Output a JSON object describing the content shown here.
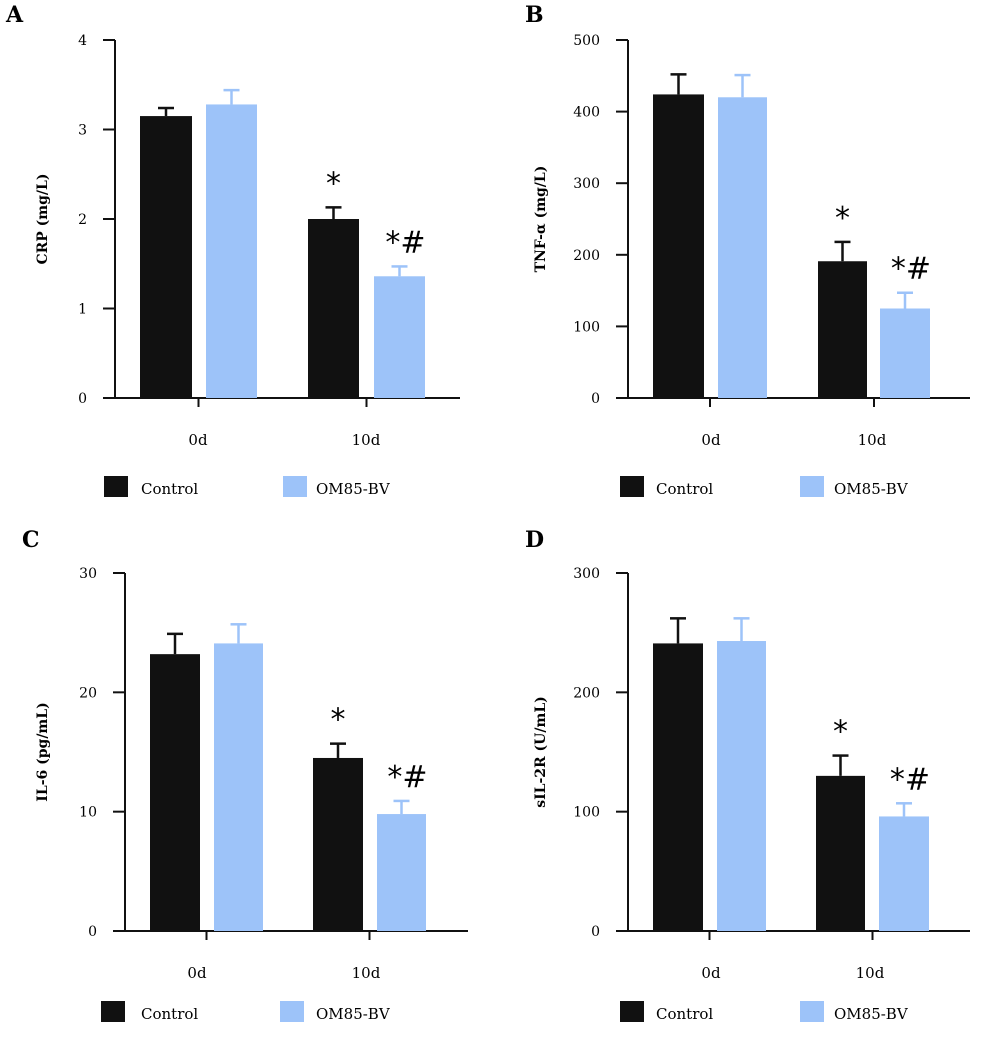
{
  "colors": {
    "control": "#111111",
    "om85": "#9DC3F9",
    "axis": "#111111"
  },
  "legend": [
    "Control",
    "OM85-BV"
  ],
  "chart_data": [
    {
      "panel": "A",
      "type": "bar",
      "ylabel": "CRP (mg/L)",
      "ylim": [
        0,
        4
      ],
      "yticks": [
        0,
        1,
        2,
        3,
        4
      ],
      "categories": [
        "0d",
        "10d"
      ],
      "series": [
        {
          "name": "Control",
          "values": [
            3.15,
            2.0
          ],
          "errors": [
            0.09,
            0.13
          ]
        },
        {
          "name": "OM85-BV",
          "values": [
            3.28,
            1.36
          ],
          "errors": [
            0.16,
            0.11
          ]
        }
      ],
      "annotations": [
        {
          "series": "Control",
          "category": "10d",
          "text": "*"
        },
        {
          "series": "OM85-BV",
          "category": "10d",
          "text": "*#"
        }
      ]
    },
    {
      "panel": "B",
      "type": "bar",
      "ylabel": "TNF-α (mg/L)",
      "ylim": [
        0,
        500
      ],
      "yticks": [
        0,
        100,
        200,
        300,
        400,
        500
      ],
      "categories": [
        "0d",
        "10d"
      ],
      "series": [
        {
          "name": "Control",
          "values": [
            424,
            191
          ],
          "errors": [
            28,
            27
          ]
        },
        {
          "name": "OM85-BV",
          "values": [
            420,
            125
          ],
          "errors": [
            31,
            22
          ]
        }
      ],
      "annotations": [
        {
          "series": "Control",
          "category": "10d",
          "text": "*"
        },
        {
          "series": "OM85-BV",
          "category": "10d",
          "text": "*#"
        }
      ]
    },
    {
      "panel": "C",
      "type": "bar",
      "ylabel": "IL-6 (pg/mL)",
      "ylim": [
        0,
        30
      ],
      "yticks": [
        0,
        10,
        20,
        30
      ],
      "categories": [
        "0d",
        "10d"
      ],
      "series": [
        {
          "name": "Control",
          "values": [
            23.2,
            14.5
          ],
          "errors": [
            1.7,
            1.2
          ]
        },
        {
          "name": "OM85-BV",
          "values": [
            24.1,
            9.8
          ],
          "errors": [
            1.6,
            1.1
          ]
        }
      ],
      "annotations": [
        {
          "series": "Control",
          "category": "10d",
          "text": "*"
        },
        {
          "series": "OM85-BV",
          "category": "10d",
          "text": "*#"
        }
      ]
    },
    {
      "panel": "D",
      "type": "bar",
      "ylabel": "sIL-2R (U/mL)",
      "ylim": [
        0,
        300
      ],
      "yticks": [
        0,
        100,
        200,
        300
      ],
      "categories": [
        "0d",
        "10d"
      ],
      "series": [
        {
          "name": "Control",
          "values": [
            241,
            130
          ],
          "errors": [
            21,
            17
          ]
        },
        {
          "name": "OM85-BV",
          "values": [
            243,
            96
          ],
          "errors": [
            19,
            11
          ]
        }
      ],
      "annotations": [
        {
          "series": "Control",
          "category": "10d",
          "text": "*"
        },
        {
          "series": "OM85-BV",
          "category": "10d",
          "text": "*#"
        }
      ]
    }
  ]
}
